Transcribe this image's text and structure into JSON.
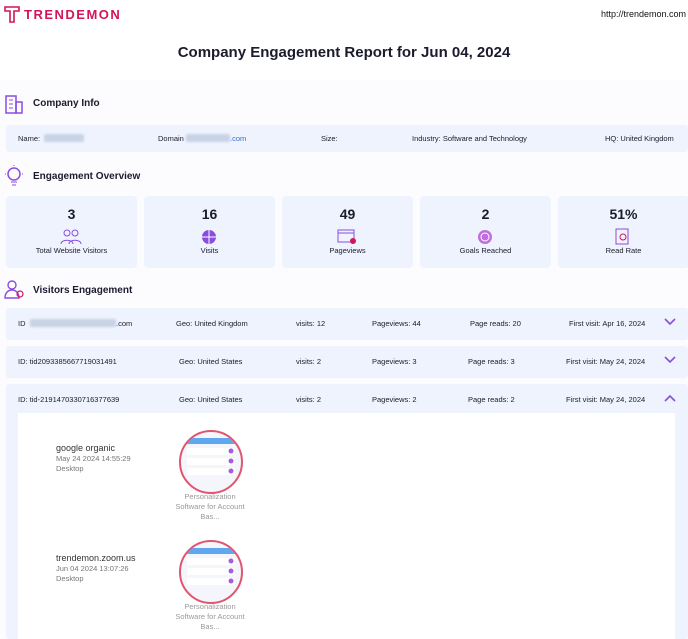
{
  "header": {
    "logo": "TRENDEMON",
    "url": "http://trendemon.com"
  },
  "title": "Company Engagement Report for Jun 04, 2024",
  "company_info": {
    "title": "Company Info",
    "name": "Name:",
    "domain": "Domain",
    "domain_suffix": ".com",
    "size": "Size:",
    "industry": "Industry: Software and Technology",
    "hq": "HQ: United Kingdom"
  },
  "engagement_overview": {
    "title": "Engagement Overview",
    "cards": [
      {
        "value": "3",
        "label": "Total Website Visitors"
      },
      {
        "value": "16",
        "label": "Visits"
      },
      {
        "value": "49",
        "label": "Pageviews"
      },
      {
        "value": "2",
        "label": "Goals Reached"
      },
      {
        "value": "51%",
        "label": "Read Rate"
      }
    ]
  },
  "visitors_engagement": {
    "title": "Visitors Engagement",
    "rows": [
      {
        "id": "ID",
        "id_suffix": ".com",
        "geo": "Geo: United Kingdom",
        "visits": "visits: 12",
        "pageviews": "Pageviews: 44",
        "page_reads": "Page reads: 20",
        "first_visit": "First visit: Apr 16, 2024"
      },
      {
        "id": "ID: tid2093385667719031491",
        "id_suffix": "",
        "geo": "Geo: United States",
        "visits": "visits: 2",
        "pageviews": "Pageviews: 3",
        "page_reads": "Page reads: 3",
        "first_visit": "First visit: May 24, 2024"
      },
      {
        "id": "ID: tid-2191470330716377639",
        "id_suffix": "",
        "geo": "Geo: United States",
        "visits": "visits: 2",
        "pageviews": "Pageviews: 2",
        "page_reads": "Page reads: 2",
        "first_visit": "First visit: May 24, 2024"
      }
    ],
    "sessions": [
      {
        "source": "google organic",
        "time": "May 24 2024 14:55:29",
        "device": "Desktop",
        "content": "Personalization Software for Account Bas..."
      },
      {
        "source": "trendemon.zoom.us",
        "time": "Jun 04 2024 13:07:26",
        "device": "Desktop",
        "content": "Personalization Software for Account Bas..."
      }
    ]
  }
}
